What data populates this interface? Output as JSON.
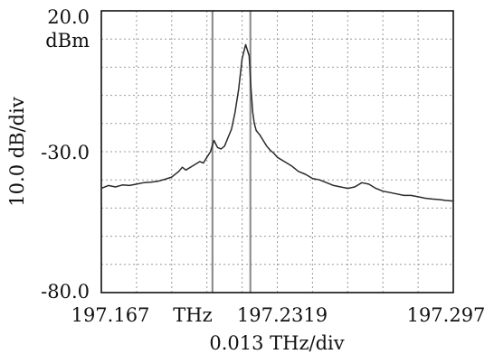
{
  "chart_data": {
    "type": "line",
    "title": "",
    "ylabel": "10.0 dB/div",
    "xlabel": "0.013 THz/div",
    "y_top_label": "20.0",
    "y_unit_label": "dBm",
    "y_mid_label": "-30.0",
    "y_bottom_label": "-80.0",
    "x_left_label": "197.167",
    "x_unit_label": "THz",
    "x_center_label": "197.2319",
    "x_right_label": "197.297",
    "xlim": [
      197.167,
      197.297
    ],
    "ylim": [
      -80,
      20
    ],
    "grid": true,
    "markers_x": [
      197.2079,
      197.2082,
      197.2219,
      197.2222
    ],
    "series": [
      {
        "x": [
          197.167,
          197.1696,
          197.1722,
          197.1748,
          197.1774,
          197.18,
          197.1826,
          197.1852,
          197.1878,
          197.1904,
          197.193,
          197.1956,
          197.1969,
          197.1982,
          197.2008,
          197.2034,
          197.2047,
          197.206,
          197.2073,
          197.2086,
          197.2099,
          197.2112,
          197.2125,
          197.2138,
          197.2151,
          197.2164,
          197.2177,
          197.219,
          197.2203,
          197.2216,
          197.2223,
          197.2229,
          197.2235,
          197.2242,
          197.2255,
          197.2268,
          197.2281,
          197.2294,
          197.2307,
          197.232,
          197.2346,
          197.2372,
          197.2398,
          197.2424,
          197.245,
          197.2476,
          197.2502,
          197.2528,
          197.2554,
          197.258,
          197.2606,
          197.2632,
          197.2658,
          197.2684,
          197.271,
          197.2736,
          197.2762,
          197.2788,
          197.2814,
          197.284,
          197.2866,
          197.2892,
          197.2918,
          197.2944,
          197.297
        ],
        "y": [
          -43.0,
          -42.0,
          -42.5,
          -41.8,
          -42.0,
          -41.5,
          -41.0,
          -40.8,
          -40.5,
          -39.8,
          -39.0,
          -37.0,
          -35.5,
          -36.5,
          -35.0,
          -33.5,
          -34.0,
          -32.0,
          -30.0,
          -26.0,
          -28.5,
          -29.0,
          -28.0,
          -25.0,
          -22.0,
          -16.0,
          -8.0,
          3.0,
          8.0,
          4.0,
          -8.0,
          -16.0,
          -20.0,
          -22.5,
          -24.0,
          -26.0,
          -28.0,
          -29.5,
          -30.5,
          -32.0,
          -33.5,
          -35.0,
          -37.0,
          -38.0,
          -39.5,
          -40.0,
          -41.0,
          -42.0,
          -42.5,
          -43.0,
          -42.5,
          -41.0,
          -41.5,
          -43.0,
          -44.0,
          -44.5,
          -45.0,
          -45.5,
          -45.5,
          -46.0,
          -46.5,
          -46.8,
          -47.0,
          -47.3,
          -47.5
        ]
      }
    ]
  }
}
